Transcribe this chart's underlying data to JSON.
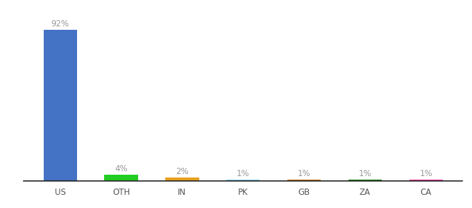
{
  "categories": [
    "US",
    "OTH",
    "IN",
    "PK",
    "GB",
    "ZA",
    "CA"
  ],
  "values": [
    92,
    4,
    2,
    1,
    1,
    1,
    1
  ],
  "labels": [
    "92%",
    "4%",
    "2%",
    "1%",
    "1%",
    "1%",
    "1%"
  ],
  "bar_colors": [
    "#4472C4",
    "#22CC22",
    "#E8A020",
    "#88CCEE",
    "#CC7722",
    "#228822",
    "#EE4499"
  ],
  "background_color": "#ffffff",
  "label_color": "#999999",
  "tick_color": "#555555",
  "ylim": [
    0,
    100
  ],
  "bar_width": 0.55
}
